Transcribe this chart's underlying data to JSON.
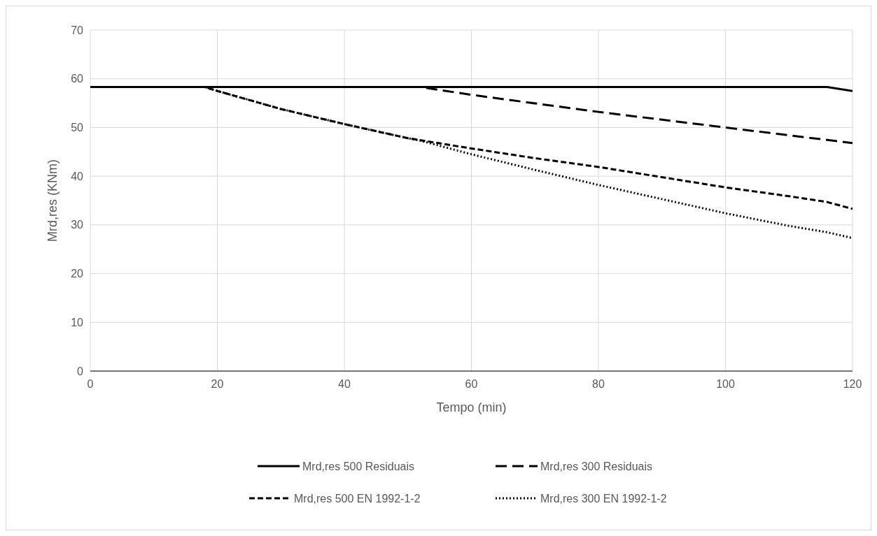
{
  "chart_data": {
    "type": "line",
    "xlabel": "Tempo (min)",
    "ylabel": "Mrd,res (KNm)",
    "xlim": [
      0,
      120
    ],
    "ylim": [
      0,
      70
    ],
    "xticks": [
      0,
      20,
      40,
      60,
      80,
      100,
      120
    ],
    "yticks": [
      0,
      10,
      20,
      30,
      40,
      50,
      60,
      70
    ],
    "grid": true,
    "legend": "bottom",
    "series": [
      {
        "name": "Mrd,res 500 Residuais",
        "color": "#000000",
        "line_style": "solid",
        "x": [
          0,
          20,
          40,
          60,
          80,
          100,
          116,
          120
        ],
        "values": [
          58.3,
          58.3,
          58.3,
          58.3,
          58.3,
          58.3,
          58.3,
          57.5
        ]
      },
      {
        "name": "Mrd,res 300 Residuais",
        "color": "#000000",
        "line_style": "dashed",
        "x": [
          0,
          20,
          40,
          52,
          60,
          80,
          100,
          120
        ],
        "values": [
          58.3,
          58.3,
          58.3,
          58.3,
          56.7,
          53.2,
          50,
          46.8
        ]
      },
      {
        "name": "Mrd,res 500 EN 1992-1-2",
        "color": "#000000",
        "line_style": "dashed",
        "x": [
          0,
          18,
          20,
          30,
          40,
          50,
          60,
          70,
          80,
          90,
          100,
          110,
          116,
          120
        ],
        "values": [
          58.3,
          58.3,
          57.5,
          53.8,
          50.7,
          47.8,
          45.7,
          43.7,
          41.9,
          39.8,
          37.7,
          35.9,
          34.7,
          33.3
        ]
      },
      {
        "name": "Mrd,res 300 EN 1992-1-2",
        "color": "#000000",
        "line_style": "dotted",
        "x": [
          0,
          18,
          20,
          30,
          40,
          50,
          52,
          60,
          70,
          80,
          90,
          100,
          110,
          116,
          120
        ],
        "values": [
          58.3,
          58.3,
          57.5,
          53.8,
          50.7,
          47.8,
          47.3,
          44.5,
          41.3,
          38.2,
          35.3,
          32.4,
          29.8,
          28.5,
          27.3
        ]
      }
    ]
  }
}
